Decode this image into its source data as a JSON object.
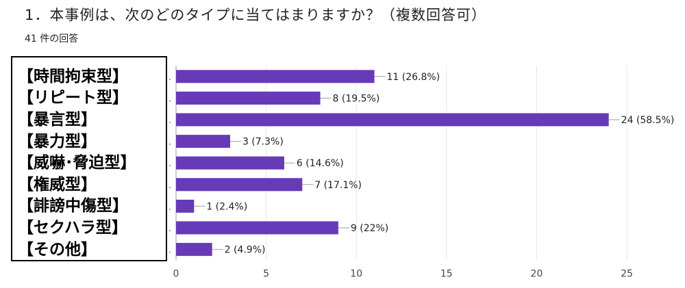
{
  "question": {
    "title": "1．本事例は、次のどのタイプに当てはまりますか？（複数回答可）",
    "response_count": "41 件の回答"
  },
  "colors": {
    "bar": "#673ab7",
    "grid": "#e6e6e6",
    "axis_text": "#444444"
  },
  "chart_data": {
    "type": "bar",
    "orientation": "horizontal",
    "categories": [
      "【時間拘束型】",
      "【リピート型】",
      "【暴言型】",
      "【暴力型】",
      "【威嚇･脅迫型】",
      "【権威型】",
      "【誹謗中傷型】",
      "【セクハラ型】",
      "【その他】"
    ],
    "values": [
      11,
      8,
      24,
      3,
      6,
      7,
      1,
      9,
      2
    ],
    "data_labels": [
      "11 (26.8%)",
      "8 (19.5%)",
      "24 (58.5%)",
      "3 (7.3%)",
      "6 (14.6%)",
      "7 (17.1%)",
      "1 (2.4%)",
      "9 (22%)",
      "2 (4.9%)"
    ],
    "x_ticks": [
      0,
      5,
      10,
      15,
      20,
      25
    ],
    "xlim": [
      0,
      25
    ],
    "grid": true,
    "xlabel": "",
    "ylabel": ""
  }
}
